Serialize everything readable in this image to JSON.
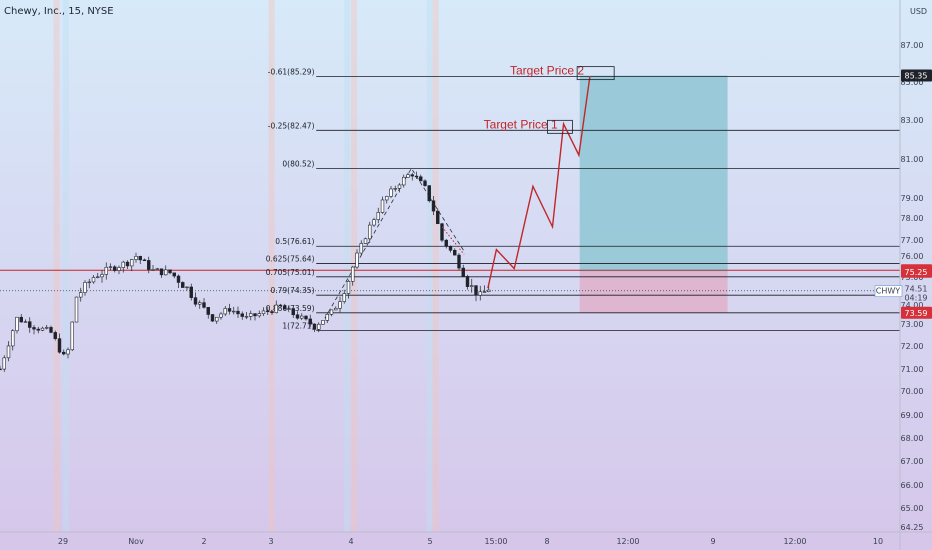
{
  "header": {
    "title": "Chewy, Inc., 15, NYSE",
    "currency": "USD"
  },
  "colors": {
    "background_top": "#d7eaf9",
    "background_bottom": "#d6c6ea",
    "candle": "#1f222a",
    "fib_line": "#1a1d26",
    "projection": "#c2262a",
    "target_zone": "#8fc6d3",
    "stop_zone": "#e1a8c2",
    "price_tag_red": "#d6303a",
    "price_tag_dark": "#1f222a"
  },
  "chart_data": {
    "type": "candlestick",
    "symbol": "CHWY",
    "timeframe": "15",
    "exchange": "NYSE",
    "last_price": 74.51,
    "countdown": "04:19",
    "ylim": [
      64.25,
      88.6
    ],
    "y_ticks": [
      87.0,
      85.0,
      83.0,
      81.0,
      79.0,
      78.0,
      77.0,
      76.0,
      75.0,
      74.0,
      73.0,
      72.0,
      71.0,
      70.0,
      69.0,
      68.0,
      67.0,
      66.0,
      65.0,
      64.25
    ],
    "x_ticks": [
      "29",
      "Nov",
      "2",
      "3",
      "4",
      "5",
      "15:00",
      "8",
      "12:00",
      "9",
      "12:00",
      "10"
    ],
    "fib_levels": [
      {
        "ratio": "-0.61",
        "price": 85.29,
        "label": "-0.61(85.29)"
      },
      {
        "ratio": "-0.25",
        "price": 82.47,
        "label": "-0.25(82.47)"
      },
      {
        "ratio": "0",
        "price": 80.52,
        "label": "0(80.52)"
      },
      {
        "ratio": "0.5",
        "price": 76.61,
        "label": "0.5(76.61)"
      },
      {
        "ratio": "0.625",
        "price": 75.64,
        "label": "0.625(75.64)"
      },
      {
        "ratio": "0.705",
        "price": 75.01,
        "label": "0.705(75.01)"
      },
      {
        "ratio": "0.79",
        "price": 74.35,
        "label": "0.79(74.35)"
      },
      {
        "ratio": "0.886",
        "price": 73.59,
        "label": "0.886(73.59)"
      },
      {
        "ratio": "1",
        "price": 72.71,
        "label": "1(72.71)"
      }
    ],
    "price_tags": [
      {
        "price": 85.35,
        "label": "85.35",
        "style": "dark"
      },
      {
        "price": 75.32,
        "label": "75.32",
        "style": "red"
      },
      {
        "price": 75.25,
        "label": "75.25",
        "style": "red"
      },
      {
        "price": 73.59,
        "label": "73.59",
        "style": "red"
      }
    ],
    "annotations": [
      {
        "text": "Target Price 1",
        "price": 82.47
      },
      {
        "text": "Target Price 2",
        "price": 85.29
      }
    ],
    "position": {
      "entry": 75.25,
      "target": 85.35,
      "stop": 73.59
    },
    "horizontal_line": 75.32,
    "projection_path": [
      [
        76.9,
        74.6
      ],
      [
        79.3,
        76.5
      ],
      [
        80.3,
        75.4
      ],
      [
        82.1,
        79.5
      ],
      [
        83.5,
        77.6
      ],
      [
        84.6,
        82.8
      ],
      [
        85.4,
        81.2
      ],
      [
        86.0,
        85.3
      ]
    ]
  }
}
